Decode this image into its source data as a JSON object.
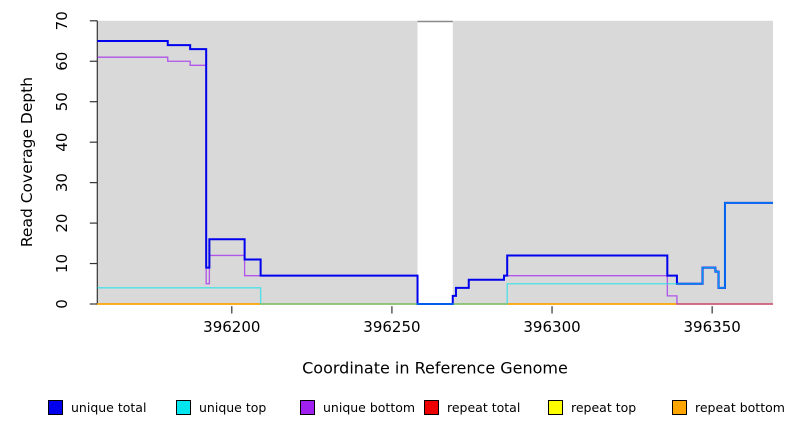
{
  "chart_data": {
    "type": "line",
    "subtype": "step-after-coverage",
    "title": "",
    "xlabel": "Coordinate in Reference Genome",
    "ylabel": "Read Coverage Depth",
    "xlim": [
      396158,
      396369
    ],
    "ylim": [
      0,
      70
    ],
    "x_ticks": [
      396200,
      396250,
      396300,
      396350
    ],
    "y_ticks": [
      0,
      10,
      20,
      30,
      40,
      50,
      60,
      70
    ],
    "grid": "off",
    "plot_bg": "#d9d9d9",
    "axis_color": "#333333",
    "no_data_region": {
      "x_start": 396258,
      "x_end": 396269,
      "color": "#ffffff"
    },
    "series": [
      {
        "name": "repeat total",
        "color": "#EE0000",
        "width": 1.2,
        "opacity": 1,
        "points": [
          [
            396158,
            0
          ],
          [
            396369,
            0
          ]
        ]
      },
      {
        "name": "repeat top",
        "color": "#FFFF00",
        "width": 1.2,
        "opacity": 1,
        "points": [
          [
            396158,
            0
          ],
          [
            396369,
            0
          ]
        ]
      },
      {
        "name": "repeat bottom",
        "color": "#FFA500",
        "width": 1.4,
        "opacity": 1,
        "points": [
          [
            396158,
            0
          ],
          [
            396369,
            0
          ]
        ]
      },
      {
        "name": "unique bottom",
        "color": "#A020F0",
        "width": 1.3,
        "opacity": 0.72,
        "points": [
          [
            396158,
            61
          ],
          [
            396180,
            60
          ],
          [
            396187,
            59
          ],
          [
            396192,
            5
          ],
          [
            396193,
            12
          ],
          [
            396204,
            7
          ],
          [
            396258,
            0
          ],
          [
            396269,
            2
          ],
          [
            396270,
            4
          ],
          [
            396274,
            6
          ],
          [
            396285,
            7
          ],
          [
            396336,
            2
          ],
          [
            396339,
            0
          ],
          [
            396369,
            0
          ]
        ]
      },
      {
        "name": "unique total",
        "color": "#0000EE",
        "width": 2.0,
        "opacity": 1,
        "points": [
          [
            396158,
            65
          ],
          [
            396180,
            64
          ],
          [
            396187,
            63
          ],
          [
            396192,
            9
          ],
          [
            396193,
            16
          ],
          [
            396204,
            11
          ],
          [
            396209,
            7
          ],
          [
            396258,
            0
          ],
          [
            396269,
            2
          ],
          [
            396270,
            4
          ],
          [
            396274,
            6
          ],
          [
            396285,
            7
          ],
          [
            396286,
            12
          ],
          [
            396336,
            7
          ],
          [
            396339,
            5
          ],
          [
            396347,
            9
          ],
          [
            396351,
            8
          ],
          [
            396352,
            4
          ],
          [
            396354,
            25
          ],
          [
            396369,
            25
          ]
        ]
      },
      {
        "name": "unique top",
        "color": "#00E5EE",
        "width": 1.3,
        "opacity": 0.65,
        "points": [
          [
            396158,
            4
          ],
          [
            396209,
            0
          ],
          [
            396286,
            5
          ],
          [
            396347,
            9
          ],
          [
            396351,
            8
          ],
          [
            396352,
            4
          ],
          [
            396354,
            25
          ],
          [
            396369,
            25
          ]
        ]
      }
    ],
    "legend": [
      {
        "label": "unique total",
        "color": "#0000EE"
      },
      {
        "label": "unique top",
        "color": "#00E5EE"
      },
      {
        "label": "unique bottom",
        "color": "#A020F0"
      },
      {
        "label": "repeat total",
        "color": "#EE0000"
      },
      {
        "label": "repeat top",
        "color": "#FFFF00"
      },
      {
        "label": "repeat bottom",
        "color": "#FFA500"
      }
    ],
    "legend_position": "bottom"
  }
}
